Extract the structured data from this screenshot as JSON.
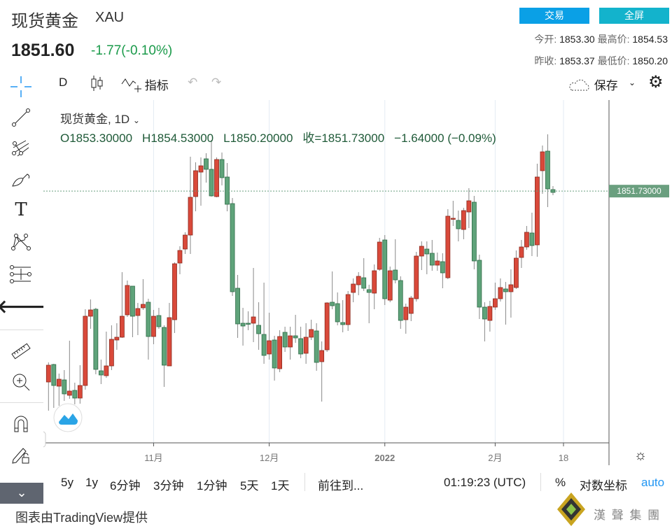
{
  "header": {
    "title": "现货黄金",
    "symbol": "XAU",
    "price": "1851.60",
    "change": "-1.77(-0.10%)",
    "trade_button": "交易",
    "fullscreen_button": "全屏",
    "open_label": "今开:",
    "open": "1853.30",
    "high_label": "最高价:",
    "high": "1854.53",
    "prev_close_label": "昨收:",
    "prev_close": "1853.37",
    "low_label": "最低价:",
    "low": "1850.20"
  },
  "toolbar": {
    "interval": "D",
    "indicators": "指标",
    "save": "保存"
  },
  "legend": {
    "title": "现货黄金, 1D",
    "open": "O1853.30000",
    "high": "H1854.53000",
    "low": "L1850.20000",
    "close": "收=1851.73000",
    "change": "−1.64000 (−0.09%)"
  },
  "price_axis": {
    "last_price_label": "1851.73000"
  },
  "time_axis": {
    "labels": [
      "11月",
      "12月",
      "2022",
      "2月",
      "18"
    ]
  },
  "bottom_bar": {
    "ranges": [
      "5y",
      "1y",
      "6分钟",
      "3分钟",
      "1分钟",
      "5天",
      "1天"
    ],
    "goto": "前往到...",
    "time": "01:19:23 (UTC)",
    "percent": "%",
    "log": "对数坐标",
    "auto": "auto"
  },
  "footer": {
    "credit": "图表由TradingView提供",
    "brand": "漢 聲 集 團"
  },
  "colors": {
    "up": "#d9493a",
    "down": "#5fa37a",
    "accent": "#2196f3",
    "trade": "#0aa0e6",
    "fullscreen": "#13b3cc",
    "last_price": "#6a9f7f"
  },
  "chart_data": {
    "type": "candlestick",
    "title": "现货黄金, 1D",
    "last_price": 1851.73,
    "ylim": [
      1722,
      1888
    ],
    "x_tick_labels": [
      "11月",
      "12月",
      "2022",
      "2月",
      "18"
    ],
    "ohlc": [
      [
        1742.6,
        1753.8,
        1726.2,
        1752.2
      ],
      [
        1752.6,
        1753.0,
        1727.8,
        1740.6
      ],
      [
        1740.2,
        1747.4,
        1729.0,
        1744.2
      ],
      [
        1743.8,
        1749.4,
        1731.8,
        1735.8
      ],
      [
        1735.0,
        1766.2,
        1733.0,
        1737.4
      ],
      [
        1737.8,
        1742.2,
        1729.8,
        1733.4
      ],
      [
        1733.4,
        1752.2,
        1730.2,
        1740.6
      ],
      [
        1740.6,
        1784.2,
        1738.2,
        1780.2
      ],
      [
        1780.2,
        1789.8,
        1773.0,
        1783.8
      ],
      [
        1784.2,
        1785.0,
        1747.0,
        1749.8
      ],
      [
        1749.0,
        1755.4,
        1741.4,
        1746.6
      ],
      [
        1746.2,
        1771.4,
        1745.0,
        1751.8
      ],
      [
        1751.8,
        1775.0,
        1749.4,
        1767.0
      ],
      [
        1766.6,
        1776.2,
        1761.0,
        1768.2
      ],
      [
        1768.2,
        1805.4,
        1767.8,
        1780.2
      ],
      [
        1781.0,
        1800.6,
        1779.8,
        1797.8
      ],
      [
        1797.4,
        1797.4,
        1768.2,
        1780.2
      ],
      [
        1780.6,
        1787.8,
        1769.4,
        1784.6
      ],
      [
        1785.0,
        1801.4,
        1783.8,
        1787.0
      ],
      [
        1788.2,
        1790.2,
        1755.4,
        1768.6
      ],
      [
        1768.6,
        1783.8,
        1764.2,
        1780.2
      ],
      [
        1780.6,
        1785.0,
        1773.0,
        1774.2
      ],
      [
        1773.8,
        1775.0,
        1739.8,
        1752.2
      ],
      [
        1751.8,
        1787.8,
        1751.8,
        1779.4
      ],
      [
        1778.2,
        1811.0,
        1770.6,
        1810.2
      ],
      [
        1810.6,
        1820.2,
        1804.2,
        1817.8
      ],
      [
        1818.6,
        1828.2,
        1815.8,
        1826.6
      ],
      [
        1826.6,
        1871.4,
        1815.8,
        1848.2
      ],
      [
        1848.6,
        1868.2,
        1840.2,
        1863.4
      ],
      [
        1862.6,
        1871.0,
        1843.4,
        1866.2
      ],
      [
        1870.2,
        1873.4,
        1856.6,
        1864.2
      ],
      [
        1864.2,
        1881.0,
        1848.6,
        1849.0
      ],
      [
        1848.6,
        1871.0,
        1848.2,
        1869.8
      ],
      [
        1869.8,
        1873.8,
        1855.0,
        1859.4
      ],
      [
        1859.8,
        1867.8,
        1840.2,
        1844.2
      ],
      [
        1844.6,
        1847.8,
        1791.8,
        1794.2
      ],
      [
        1796.2,
        1803.8,
        1767.8,
        1775.8
      ],
      [
        1776.2,
        1785.0,
        1763.4,
        1774.6
      ],
      [
        1776.2,
        1783.0,
        1772.2,
        1775.8
      ],
      [
        1776.2,
        1807.8,
        1765.4,
        1779.8
      ],
      [
        1775.0,
        1788.2,
        1761.0,
        1770.2
      ],
      [
        1769.8,
        1799.4,
        1753.0,
        1757.8
      ],
      [
        1758.6,
        1782.2,
        1755.4,
        1766.2
      ],
      [
        1766.6,
        1769.0,
        1743.4,
        1750.6
      ],
      [
        1750.2,
        1772.2,
        1748.2,
        1768.6
      ],
      [
        1771.0,
        1774.2,
        1759.8,
        1762.6
      ],
      [
        1762.6,
        1774.2,
        1755.4,
        1769.0
      ],
      [
        1769.0,
        1781.0,
        1765.0,
        1767.8
      ],
      [
        1767.4,
        1774.2,
        1756.2,
        1758.6
      ],
      [
        1759.0,
        1776.2,
        1753.0,
        1768.2
      ],
      [
        1768.2,
        1778.2,
        1766.6,
        1772.6
      ],
      [
        1771.8,
        1776.2,
        1749.0,
        1753.8
      ],
      [
        1754.2,
        1765.8,
        1731.4,
        1760.6
      ],
      [
        1761.0,
        1788.2,
        1759.8,
        1787.8
      ],
      [
        1788.2,
        1805.8,
        1784.2,
        1786.2
      ],
      [
        1787.4,
        1793.8,
        1775.0,
        1777.0
      ],
      [
        1776.6,
        1789.4,
        1771.0,
        1775.4
      ],
      [
        1775.4,
        1794.6,
        1771.8,
        1792.6
      ],
      [
        1793.8,
        1801.8,
        1788.2,
        1798.6
      ],
      [
        1798.2,
        1805.4,
        1792.2,
        1803.0
      ],
      [
        1802.2,
        1813.4,
        1794.6,
        1796.2
      ],
      [
        1795.4,
        1798.2,
        1776.2,
        1793.8
      ],
      [
        1793.4,
        1809.8,
        1784.2,
        1806.2
      ],
      [
        1807.0,
        1825.0,
        1806.2,
        1822.6
      ],
      [
        1823.8,
        1826.6,
        1786.6,
        1790.2
      ],
      [
        1789.4,
        1808.6,
        1788.2,
        1806.2
      ],
      [
        1806.6,
        1824.2,
        1799.0,
        1801.0
      ],
      [
        1800.6,
        1803.0,
        1773.0,
        1777.8
      ],
      [
        1778.2,
        1787.4,
        1770.2,
        1785.4
      ],
      [
        1781.8,
        1791.8,
        1777.4,
        1790.6
      ],
      [
        1790.2,
        1817.0,
        1788.6,
        1814.6
      ],
      [
        1814.6,
        1823.0,
        1806.6,
        1820.2
      ],
      [
        1818.6,
        1823.0,
        1804.2,
        1815.8
      ],
      [
        1816.2,
        1823.8,
        1806.2,
        1809.4
      ],
      [
        1809.4,
        1816.6,
        1806.2,
        1811.8
      ],
      [
        1811.4,
        1816.2,
        1796.2,
        1805.0
      ],
      [
        1802.2,
        1841.4,
        1801.4,
        1837.4
      ],
      [
        1835.8,
        1846.2,
        1831.8,
        1836.2
      ],
      [
        1835.0,
        1840.6,
        1823.0,
        1830.2
      ],
      [
        1829.8,
        1842.2,
        1824.2,
        1840.6
      ],
      [
        1839.8,
        1853.4,
        1830.6,
        1846.2
      ],
      [
        1845.4,
        1849.0,
        1807.0,
        1811.8
      ],
      [
        1812.2,
        1815.4,
        1778.6,
        1785.4
      ],
      [
        1785.4,
        1788.2,
        1765.8,
        1778.6
      ],
      [
        1777.8,
        1789.0,
        1771.4,
        1785.8
      ],
      [
        1785.4,
        1799.4,
        1783.8,
        1790.2
      ],
      [
        1790.2,
        1801.8,
        1788.6,
        1796.6
      ],
      [
        1795.8,
        1799.8,
        1775.4,
        1794.2
      ],
      [
        1794.2,
        1807.0,
        1779.4,
        1798.2
      ],
      [
        1796.6,
        1817.8,
        1795.8,
        1813.4
      ],
      [
        1813.8,
        1823.8,
        1807.8,
        1819.8
      ],
      [
        1819.8,
        1831.8,
        1818.2,
        1828.2
      ],
      [
        1827.8,
        1839.4,
        1814.6,
        1820.6
      ],
      [
        1821.0,
        1867.4,
        1814.2,
        1859.8
      ],
      [
        1863.4,
        1877.8,
        1850.2,
        1874.2
      ],
      [
        1874.6,
        1884.2,
        1842.6,
        1853.0
      ],
      [
        1852.6,
        1854.6,
        1849.4,
        1851.0
      ]
    ]
  }
}
